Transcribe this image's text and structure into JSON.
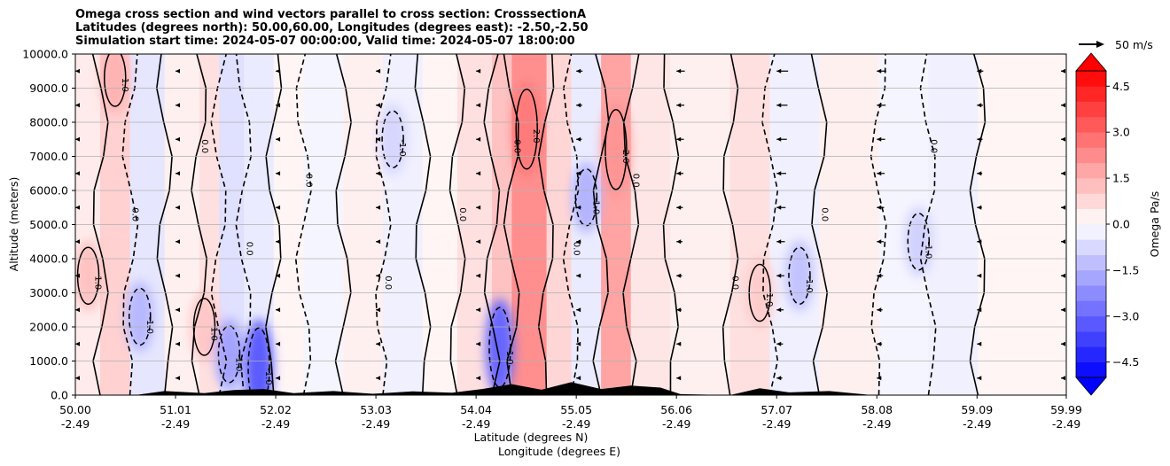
{
  "chart_data": {
    "type": "contour",
    "title_lines": [
      "Omega cross section and wind vectors parallel to cross section: CrosssectionA",
      "Latitudes (degrees north): 50.00,60.00, Longitudes (degrees east): -2.50,-2.50",
      "Simulation start time: 2024-05-07 00:00:00, Valid time: 2024-05-07 18:00:00"
    ],
    "ylabel": "Altitude (meters)",
    "xlabel_lines": [
      "Latitude (degrees N)",
      "Longitude (degrees E)"
    ],
    "ylim": [
      0,
      10000
    ],
    "y_ticks": [
      {
        "value": 0,
        "label": "0.0"
      },
      {
        "value": 1000,
        "label": "1000.0"
      },
      {
        "value": 2000,
        "label": "2000.0"
      },
      {
        "value": 3000,
        "label": "3000.0"
      },
      {
        "value": 4000,
        "label": "4000.0"
      },
      {
        "value": 5000,
        "label": "5000.0"
      },
      {
        "value": 6000,
        "label": "6000.0"
      },
      {
        "value": 7000,
        "label": "7000.0"
      },
      {
        "value": 8000,
        "label": "8000.0"
      },
      {
        "value": 9000,
        "label": "9000.0"
      },
      {
        "value": 10000,
        "label": "10000.0"
      }
    ],
    "xlim": [
      50.0,
      59.99
    ],
    "x_ticks": [
      {
        "lat": 50.0,
        "lat_label": "50.00",
        "lon_label": "-2.49"
      },
      {
        "lat": 51.01,
        "lat_label": "51.01",
        "lon_label": "-2.49"
      },
      {
        "lat": 52.02,
        "lat_label": "52.02",
        "lon_label": "-2.49"
      },
      {
        "lat": 53.03,
        "lat_label": "53.03",
        "lon_label": "-2.49"
      },
      {
        "lat": 54.04,
        "lat_label": "54.04",
        "lon_label": "-2.49"
      },
      {
        "lat": 55.05,
        "lat_label": "55.05",
        "lon_label": "-2.49"
      },
      {
        "lat": 56.06,
        "lat_label": "56.06",
        "lon_label": "-2.49"
      },
      {
        "lat": 57.07,
        "lat_label": "57.07",
        "lon_label": "-2.49"
      },
      {
        "lat": 58.08,
        "lat_label": "58.08",
        "lon_label": "-2.49"
      },
      {
        "lat": 59.09,
        "lat_label": "59.09",
        "lon_label": "-2.49"
      },
      {
        "lat": 59.99,
        "lat_label": "59.99",
        "lon_label": "-2.49"
      }
    ],
    "grid": true,
    "colorbar": {
      "label": "Omega Pa/s",
      "range": [
        -5.0,
        5.0
      ],
      "extend": "both",
      "ticks": [
        {
          "value": 4.5,
          "label": "4.5"
        },
        {
          "value": 3.0,
          "label": "3.0"
        },
        {
          "value": 1.5,
          "label": "1.5"
        },
        {
          "value": 0.0,
          "label": "0.0"
        },
        {
          "value": -1.5,
          "label": "−1.5"
        },
        {
          "value": -3.0,
          "label": "−3.0"
        },
        {
          "value": -4.5,
          "label": "−4.5"
        }
      ]
    },
    "vector_key": {
      "label": "50 m/s",
      "value": 50
    },
    "colors": {
      "positive": "#ff0000",
      "negative": "#0000ff",
      "neutral": "#ffffff",
      "terrain": "#000000",
      "grid": "#b0b0b0"
    },
    "contour_levels_labeled": [
      "0.0",
      "1.0",
      "-1.0",
      "2.0"
    ],
    "omega_bands": [
      {
        "lat_start": 50.0,
        "lat_end": 50.25,
        "value": 0.4
      },
      {
        "lat_start": 50.25,
        "lat_end": 50.55,
        "value": 0.9
      },
      {
        "lat_start": 50.55,
        "lat_end": 50.9,
        "value": -0.5
      },
      {
        "lat_start": 50.9,
        "lat_end": 51.25,
        "value": 0.3
      },
      {
        "lat_start": 51.25,
        "lat_end": 51.45,
        "value": 0.6
      },
      {
        "lat_start": 51.45,
        "lat_end": 51.7,
        "value": -0.6
      },
      {
        "lat_start": 51.7,
        "lat_end": 52.0,
        "value": -0.4
      },
      {
        "lat_start": 52.0,
        "lat_end": 52.3,
        "value": 0.2
      },
      {
        "lat_start": 52.3,
        "lat_end": 52.7,
        "value": -0.2
      },
      {
        "lat_start": 52.7,
        "lat_end": 53.1,
        "value": 0.3
      },
      {
        "lat_start": 53.1,
        "lat_end": 53.5,
        "value": -0.3
      },
      {
        "lat_start": 53.5,
        "lat_end": 53.85,
        "value": 0.2
      },
      {
        "lat_start": 53.85,
        "lat_end": 54.2,
        "value": 0.6
      },
      {
        "lat_start": 54.2,
        "lat_end": 54.4,
        "value": 1.2
      },
      {
        "lat_start": 54.4,
        "lat_end": 54.75,
        "value": 2.2
      },
      {
        "lat_start": 54.75,
        "lat_end": 55.0,
        "value": 0.8
      },
      {
        "lat_start": 55.0,
        "lat_end": 55.3,
        "value": -0.4
      },
      {
        "lat_start": 55.3,
        "lat_end": 55.6,
        "value": 1.8
      },
      {
        "lat_start": 55.6,
        "lat_end": 56.0,
        "value": 0.5
      },
      {
        "lat_start": 56.0,
        "lat_end": 56.6,
        "value": 0.3
      },
      {
        "lat_start": 56.6,
        "lat_end": 57.0,
        "value": 0.6
      },
      {
        "lat_start": 57.0,
        "lat_end": 57.5,
        "value": -0.3
      },
      {
        "lat_start": 57.5,
        "lat_end": 58.1,
        "value": 0.3
      },
      {
        "lat_start": 58.1,
        "lat_end": 58.6,
        "value": -0.2
      },
      {
        "lat_start": 58.6,
        "lat_end": 59.1,
        "value": -0.3
      },
      {
        "lat_start": 59.1,
        "lat_end": 59.99,
        "value": 0.2
      }
    ],
    "omega_cells": [
      {
        "lat": 50.13,
        "alt": 3500,
        "value": 1.2
      },
      {
        "lat": 50.4,
        "alt": 9300,
        "value": 1.5
      },
      {
        "lat": 50.65,
        "alt": 2300,
        "value": -1.4
      },
      {
        "lat": 51.3,
        "alt": 2000,
        "value": 1.1
      },
      {
        "lat": 51.85,
        "alt": 800,
        "value": -3.2
      },
      {
        "lat": 51.55,
        "alt": 1200,
        "value": -1.8
      },
      {
        "lat": 54.28,
        "alt": 1400,
        "value": -3.0
      },
      {
        "lat": 54.55,
        "alt": 7800,
        "value": 2.6
      },
      {
        "lat": 55.45,
        "alt": 7200,
        "value": 2.1
      },
      {
        "lat": 55.15,
        "alt": 5800,
        "value": -1.5
      },
      {
        "lat": 57.3,
        "alt": 3500,
        "value": -1.2
      },
      {
        "lat": 56.9,
        "alt": 3000,
        "value": 1.0
      },
      {
        "lat": 58.5,
        "alt": 4500,
        "value": -0.9
      },
      {
        "lat": 53.2,
        "alt": 7500,
        "value": -0.8
      }
    ],
    "wind_vectors_mps": [
      {
        "lat": 50.0,
        "u": -4
      },
      {
        "lat": 51.01,
        "u": -6
      },
      {
        "lat": 52.02,
        "u": -5
      },
      {
        "lat": 53.03,
        "u": -6
      },
      {
        "lat": 54.04,
        "u": -8
      },
      {
        "lat": 55.05,
        "u": -12
      },
      {
        "lat": 56.06,
        "u": -16
      },
      {
        "lat": 57.07,
        "u": -22
      },
      {
        "lat": 58.08,
        "u": -18
      },
      {
        "lat": 59.09,
        "u": -12
      },
      {
        "lat": 59.99,
        "u": -8
      }
    ],
    "terrain_m": [
      {
        "lat": 50.0,
        "alt": 0
      },
      {
        "lat": 50.6,
        "alt": 0
      },
      {
        "lat": 50.9,
        "alt": 120
      },
      {
        "lat": 51.3,
        "alt": 60
      },
      {
        "lat": 51.6,
        "alt": 150
      },
      {
        "lat": 51.9,
        "alt": 180
      },
      {
        "lat": 52.2,
        "alt": 60
      },
      {
        "lat": 52.6,
        "alt": 120
      },
      {
        "lat": 53.0,
        "alt": 40
      },
      {
        "lat": 53.4,
        "alt": 110
      },
      {
        "lat": 53.8,
        "alt": 70
      },
      {
        "lat": 54.1,
        "alt": 180
      },
      {
        "lat": 54.4,
        "alt": 320
      },
      {
        "lat": 54.7,
        "alt": 160
      },
      {
        "lat": 55.0,
        "alt": 380
      },
      {
        "lat": 55.3,
        "alt": 180
      },
      {
        "lat": 55.6,
        "alt": 280
      },
      {
        "lat": 55.9,
        "alt": 220
      },
      {
        "lat": 56.1,
        "alt": 30
      },
      {
        "lat": 56.6,
        "alt": 0
      },
      {
        "lat": 56.9,
        "alt": 200
      },
      {
        "lat": 57.2,
        "alt": 80
      },
      {
        "lat": 57.6,
        "alt": 120
      },
      {
        "lat": 58.0,
        "alt": 10
      },
      {
        "lat": 59.99,
        "alt": 0
      }
    ]
  }
}
